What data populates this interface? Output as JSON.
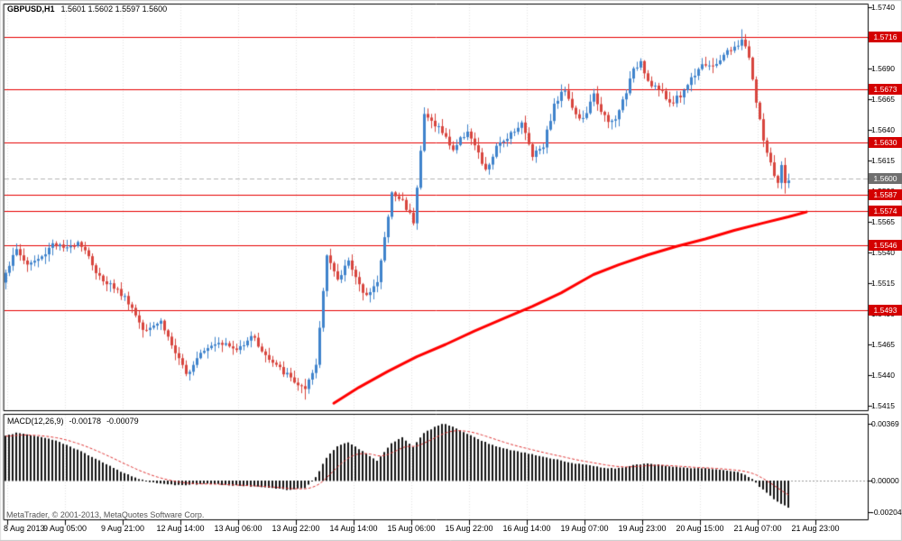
{
  "header": {
    "symbol": "GBPUSD,H1",
    "ohlc": "1.5601 1.5602 1.5597 1.5600"
  },
  "macd_panel": {
    "title": "MACD(12,26,9)",
    "macd_value": "-0.00178",
    "signal_value": "-0.00079",
    "axis_tick_labels": [
      "0.00369",
      "0.00000",
      "-0.00204"
    ]
  },
  "footer": {
    "copyright": "MetaTrader, © 2001-2013, MetaQuotes Software Corp."
  },
  "colors": {
    "bull": "#3f83cc",
    "bear": "#d8453e",
    "hline": "#e60000",
    "tag_bg": "#d40000",
    "current_tag_bg": "#6f6f6f",
    "ma_line": "#ff0000",
    "macd_histogram": "#141414",
    "macd_signal": "#e03333",
    "grid": "#e4e4e4",
    "border": "#000000",
    "frame": "#c8c8c8",
    "bid_line": "#b5b5b5"
  },
  "chart_data": {
    "type": "candlestick",
    "symbol": "GBPUSD",
    "timeframe": "H1",
    "price_axis": {
      "top": 1.574,
      "bottom": 1.5415,
      "tick_labels": [
        "1.5740",
        "1.5715",
        "1.5690",
        "1.5665",
        "1.5640",
        "1.5615",
        "1.5590",
        "1.5565",
        "1.5540",
        "1.5515",
        "1.5490",
        "1.5465",
        "1.5440",
        "1.5415"
      ]
    },
    "time_axis": {
      "candles_per_tick": 16,
      "tick_labels": [
        "8 Aug 2013",
        "9 Aug 05:00",
        "9 Aug 21:00",
        "12 Aug 14:00",
        "13 Aug 06:00",
        "13 Aug 22:00",
        "14 Aug 14:00",
        "15 Aug 06:00",
        "15 Aug 22:00",
        "16 Aug 14:00",
        "19 Aug 07:00",
        "19 Aug 23:00",
        "20 Aug 15:00",
        "21 Aug 07:00",
        "21 Aug 23:00"
      ]
    },
    "candle_count": 218,
    "price_close_waypoints": [
      [
        0,
        1.5525
      ],
      [
        3,
        1.5542
      ],
      [
        6,
        1.553
      ],
      [
        10,
        1.5536
      ],
      [
        13,
        1.5548
      ],
      [
        17,
        1.5542
      ],
      [
        20,
        1.555
      ],
      [
        23,
        1.5538
      ],
      [
        25,
        1.5522
      ],
      [
        30,
        1.5512
      ],
      [
        34,
        1.55
      ],
      [
        38,
        1.5478
      ],
      [
        43,
        1.5484
      ],
      [
        47,
        1.5458
      ],
      [
        50,
        1.544
      ],
      [
        54,
        1.546
      ],
      [
        59,
        1.5468
      ],
      [
        64,
        1.546
      ],
      [
        68,
        1.5473
      ],
      [
        73,
        1.5452
      ],
      [
        78,
        1.544
      ],
      [
        83,
        1.5427
      ],
      [
        86,
        1.5448
      ],
      [
        89,
        1.554
      ],
      [
        92,
        1.5516
      ],
      [
        95,
        1.5535
      ],
      [
        99,
        1.5505
      ],
      [
        103,
        1.5515
      ],
      [
        107,
        1.5588
      ],
      [
        110,
        1.5582
      ],
      [
        113,
        1.5566
      ],
      [
        116,
        1.5652
      ],
      [
        120,
        1.5642
      ],
      [
        124,
        1.5624
      ],
      [
        128,
        1.564
      ],
      [
        133,
        1.5606
      ],
      [
        136,
        1.5625
      ],
      [
        140,
        1.5638
      ],
      [
        143,
        1.5645
      ],
      [
        146,
        1.562
      ],
      [
        149,
        1.5628
      ],
      [
        152,
        1.566
      ],
      [
        155,
        1.5674
      ],
      [
        158,
        1.5652
      ],
      [
        160,
        1.5648
      ],
      [
        163,
        1.5668
      ],
      [
        167,
        1.5645
      ],
      [
        169,
        1.5648
      ],
      [
        174,
        1.5688
      ],
      [
        176,
        1.5697
      ],
      [
        178,
        1.568
      ],
      [
        181,
        1.5673
      ],
      [
        184,
        1.5662
      ],
      [
        187,
        1.5668
      ],
      [
        190,
        1.5682
      ],
      [
        193,
        1.5695
      ],
      [
        196,
        1.569
      ],
      [
        199,
        1.5702
      ],
      [
        202,
        1.5706
      ],
      [
        204,
        1.5714
      ],
      [
        206,
        1.57
      ],
      [
        208,
        1.5662
      ],
      [
        210,
        1.5632
      ],
      [
        212,
        1.5612
      ],
      [
        213,
        1.56
      ],
      [
        214,
        1.5596
      ],
      [
        215,
        1.561
      ],
      [
        216,
        1.5595
      ],
      [
        217,
        1.56
      ]
    ],
    "wick_extremes": [
      [
        83,
        "low",
        1.542
      ],
      [
        204,
        "high",
        1.5722
      ],
      [
        216,
        "low",
        1.5588
      ]
    ],
    "hlines": [
      1.5716,
      1.5673,
      1.563,
      1.5587,
      1.5574,
      1.5546,
      1.5493
    ],
    "current_price": 1.56,
    "ma_trend_points": [
      [
        91,
        1.5417
      ],
      [
        98,
        1.543
      ],
      [
        106,
        1.5443
      ],
      [
        114,
        1.5455
      ],
      [
        122,
        1.5465
      ],
      [
        130,
        1.5476
      ],
      [
        138,
        1.5486
      ],
      [
        146,
        1.5496
      ],
      [
        154,
        1.5507
      ],
      [
        160,
        1.5517
      ],
      [
        163,
        1.5522
      ],
      [
        170,
        1.553
      ],
      [
        178,
        1.5538
      ],
      [
        186,
        1.5545
      ],
      [
        194,
        1.5551
      ],
      [
        202,
        1.5558
      ],
      [
        210,
        1.5564
      ],
      [
        217,
        1.5569
      ],
      [
        222,
        1.5573
      ]
    ],
    "macd": {
      "axis_top": 0.00369,
      "axis_bottom": -0.00204,
      "signal_period": 9,
      "waypoints": [
        [
          0,
          0.0029
        ],
        [
          3,
          0.0031
        ],
        [
          8,
          0.0029
        ],
        [
          14,
          0.0026
        ],
        [
          20,
          0.002
        ],
        [
          26,
          0.0013
        ],
        [
          31,
          0.0007
        ],
        [
          36,
          0.0002
        ],
        [
          40,
          -0.0001
        ],
        [
          48,
          -0.0003
        ],
        [
          56,
          -0.0002
        ],
        [
          62,
          -0.0003
        ],
        [
          70,
          -0.0004
        ],
        [
          78,
          -0.0006
        ],
        [
          83,
          -0.0005
        ],
        [
          86,
          0.0002
        ],
        [
          89,
          0.0015
        ],
        [
          92,
          0.0022
        ],
        [
          95,
          0.0025
        ],
        [
          99,
          0.0019
        ],
        [
          103,
          0.0013
        ],
        [
          107,
          0.0024
        ],
        [
          110,
          0.0028
        ],
        [
          113,
          0.0022
        ],
        [
          116,
          0.0031
        ],
        [
          120,
          0.0036
        ],
        [
          122,
          0.0037
        ],
        [
          126,
          0.0033
        ],
        [
          130,
          0.0028
        ],
        [
          134,
          0.0024
        ],
        [
          138,
          0.0021
        ],
        [
          142,
          0.0019
        ],
        [
          146,
          0.0017
        ],
        [
          150,
          0.0015
        ],
        [
          154,
          0.0013
        ],
        [
          158,
          0.0011
        ],
        [
          162,
          0.001
        ],
        [
          166,
          0.0008
        ],
        [
          170,
          0.0008
        ],
        [
          174,
          0.001
        ],
        [
          178,
          0.0011
        ],
        [
          182,
          0.001
        ],
        [
          186,
          0.0009
        ],
        [
          190,
          0.0008
        ],
        [
          194,
          0.0008
        ],
        [
          198,
          0.0007
        ],
        [
          202,
          0.0006
        ],
        [
          205,
          0.0004
        ],
        [
          207,
          0.0001
        ],
        [
          209,
          -0.0004
        ],
        [
          211,
          -0.0008
        ],
        [
          213,
          -0.0012
        ],
        [
          215,
          -0.0015
        ],
        [
          217,
          -0.00178
        ]
      ]
    }
  }
}
